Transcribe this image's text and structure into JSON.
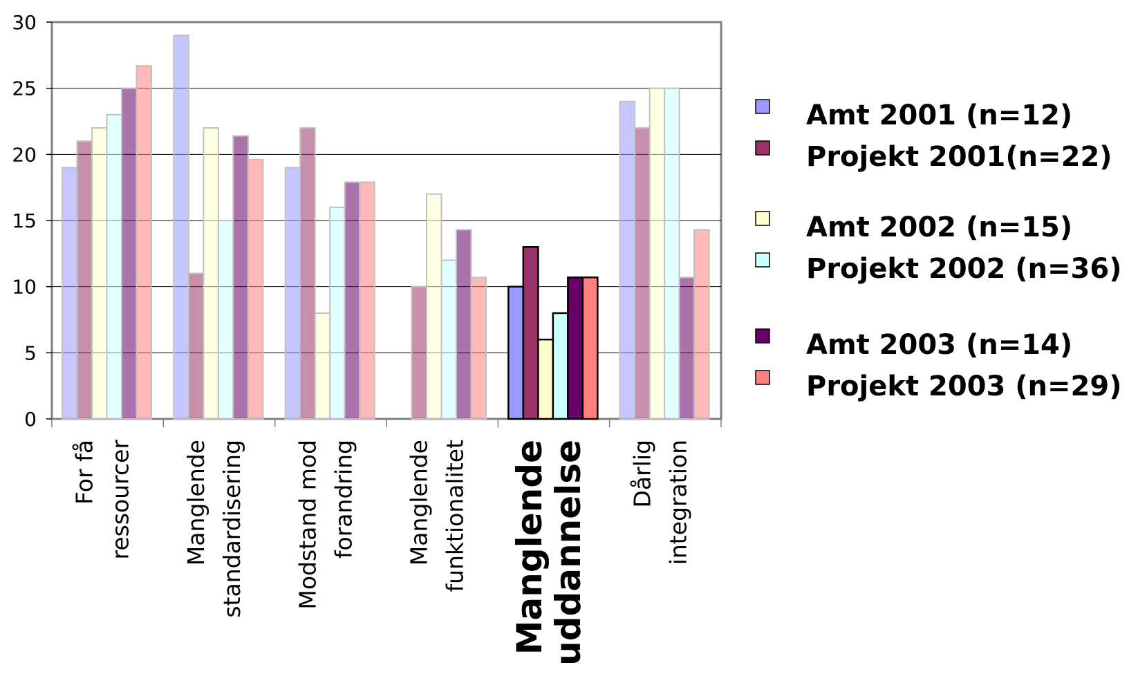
{
  "chart_data": {
    "type": "bar",
    "ylim": [
      0,
      30
    ],
    "yticks": [
      0,
      5,
      10,
      15,
      20,
      25,
      30
    ],
    "grid": true,
    "legend_position": "right",
    "highlighted_category_index": 4,
    "categories": [
      [
        "For få",
        "ressourcer"
      ],
      [
        "Manglende",
        "standardisering"
      ],
      [
        "Modstand mod",
        "forandring"
      ],
      [
        "Manglende",
        "funktionalitet"
      ],
      [
        "Manglende",
        "uddannelse"
      ],
      [
        "Dårlig",
        "integration"
      ]
    ],
    "series": [
      {
        "name": "Amt 2001 (n=12)",
        "color": "#9999ff",
        "values": [
          19,
          29,
          19,
          0,
          10,
          24
        ]
      },
      {
        "name": "Projekt 2001(n=22)",
        "color": "#993366",
        "values": [
          21,
          11,
          22,
          10,
          13,
          22
        ]
      },
      {
        "name": "Amt 2002 (n=15)",
        "color": "#ffffcc",
        "values": [
          22,
          22,
          8,
          17,
          6,
          25
        ]
      },
      {
        "name": "Projekt 2002 (n=36)",
        "color": "#ccffff",
        "values": [
          23,
          15,
          16,
          12,
          8,
          25
        ]
      },
      {
        "name": "Amt 2003 (n=14)",
        "color": "#660066",
        "values": [
          25,
          21.4,
          17.9,
          14.3,
          10.7,
          10.7
        ]
      },
      {
        "name": "Projekt 2003 (n=29)",
        "color": "#ff8080",
        "values": [
          26.7,
          19.6,
          17.9,
          10.7,
          10.7,
          14.3
        ]
      }
    ]
  }
}
